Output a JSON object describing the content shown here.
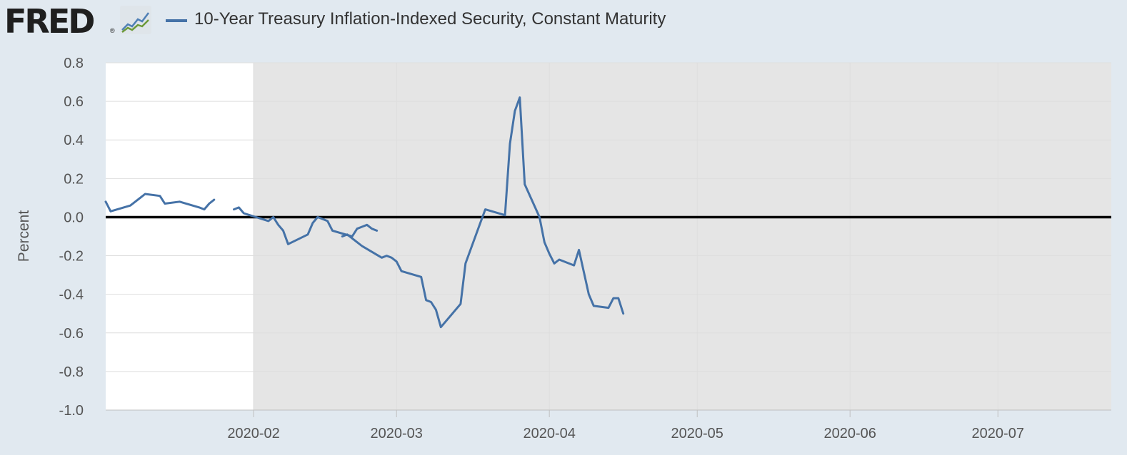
{
  "header": {
    "logo_text": "FRED",
    "reg_mark": "®",
    "series_title": "10-Year Treasury Inflation-Indexed Security, Constant Maturity"
  },
  "colors": {
    "background": "#e1e9f0",
    "plot_background": "#ffffff",
    "recession_shade": "#e5e5e5",
    "series_line": "#4572a7",
    "zero_line": "#000000",
    "gridline": "#dedede"
  },
  "icons": {
    "logo": "fred-logo",
    "graph": "graph-icon"
  },
  "chart_data": {
    "type": "line",
    "title": "",
    "xlabel": "",
    "ylabel": "Percent",
    "ylim": [
      -1.0,
      0.8
    ],
    "xlim": [
      "2020-01-02",
      "2020-07-24"
    ],
    "y_ticks": [
      "0.8",
      "0.6",
      "0.4",
      "0.2",
      "0.0",
      "-0.2",
      "-0.4",
      "-0.6",
      "-0.8",
      "-1.0"
    ],
    "y_tick_values": [
      0.8,
      0.6,
      0.4,
      0.2,
      0.0,
      -0.2,
      -0.4,
      -0.6,
      -0.8,
      -1.0
    ],
    "x_ticks": [
      "2020-02",
      "2020-03",
      "2020-04",
      "2020-05",
      "2020-06",
      "2020-07"
    ],
    "x_tick_dates": [
      "2020-02-01",
      "2020-03-01",
      "2020-04-01",
      "2020-05-01",
      "2020-06-01",
      "2020-07-01"
    ],
    "grid": true,
    "recession_shading": {
      "start": "2020-02-01",
      "end": "2020-07-24"
    },
    "reference_line": {
      "y": 0.0
    },
    "series": [
      {
        "name": "10-Year Treasury Inflation-Indexed Security, Constant Maturity",
        "segments": [
          [
            [
              "2020-01-02",
              0.08
            ],
            [
              "2020-01-03",
              0.03
            ],
            [
              "2020-01-07",
              0.06
            ],
            [
              "2020-01-09",
              0.1
            ],
            [
              "2020-01-10",
              0.12
            ],
            [
              "2020-01-13",
              0.11
            ],
            [
              "2020-01-14",
              0.07
            ],
            [
              "2020-01-17",
              0.08
            ],
            [
              "2020-01-21",
              0.05
            ],
            [
              "2020-01-22",
              0.04
            ],
            [
              "2020-01-23",
              0.07
            ],
            [
              "2020-01-24",
              0.09
            ]
          ],
          [
            [
              "2020-01-28",
              0.04
            ],
            [
              "2020-01-29",
              0.05
            ],
            [
              "2020-01-30",
              0.02
            ],
            [
              "2020-02-04",
              -0.02
            ],
            [
              "2020-02-05",
              0.0
            ],
            [
              "2020-02-06",
              -0.04
            ],
            [
              "2020-02-07",
              -0.07
            ],
            [
              "2020-02-08",
              -0.14
            ],
            [
              "2020-02-12",
              -0.09
            ],
            [
              "2020-02-13",
              -0.03
            ],
            [
              "2020-02-14",
              0.0
            ],
            [
              "2020-02-16",
              -0.02
            ],
            [
              "2020-02-17",
              -0.07
            ],
            [
              "2020-02-21",
              -0.1
            ],
            [
              "2020-02-22",
              -0.06
            ],
            [
              "2020-02-24",
              -0.04
            ],
            [
              "2020-02-25",
              -0.06
            ],
            [
              "2020-02-26",
              -0.07
            ]
          ],
          [
            [
              "2020-02-19",
              -0.1
            ],
            [
              "2020-02-20",
              -0.09
            ],
            [
              "2020-02-21",
              -0.11
            ],
            [
              "2020-02-23",
              -0.15
            ],
            [
              "2020-02-27",
              -0.21
            ],
            [
              "2020-02-28",
              -0.2
            ],
            [
              "2020-02-29",
              -0.21
            ],
            [
              "2020-03-01",
              -0.23
            ],
            [
              "2020-03-02",
              -0.28
            ],
            [
              "2020-03-06",
              -0.31
            ],
            [
              "2020-03-07",
              -0.43
            ],
            [
              "2020-03-08",
              -0.44
            ],
            [
              "2020-03-09",
              -0.48
            ],
            [
              "2020-03-10",
              -0.57
            ],
            [
              "2020-03-14",
              -0.45
            ],
            [
              "2020-03-15",
              -0.24
            ],
            [
              "2020-03-18",
              -0.03
            ],
            [
              "2020-03-19",
              0.04
            ],
            [
              "2020-03-23",
              0.01
            ],
            [
              "2020-03-24",
              0.38
            ],
            [
              "2020-03-25",
              0.55
            ],
            [
              "2020-03-26",
              0.62
            ],
            [
              "2020-03-27",
              0.17
            ],
            [
              "2020-03-30",
              0.0
            ],
            [
              "2020-03-31",
              -0.13
            ],
            [
              "2020-04-01",
              -0.19
            ],
            [
              "2020-04-02",
              -0.24
            ],
            [
              "2020-04-03",
              -0.22
            ],
            [
              "2020-04-06",
              -0.25
            ],
            [
              "2020-04-07",
              -0.17
            ],
            [
              "2020-04-09",
              -0.4
            ],
            [
              "2020-04-10",
              -0.46
            ],
            [
              "2020-04-13",
              -0.47
            ],
            [
              "2020-04-14",
              -0.42
            ],
            [
              "2020-04-15",
              -0.42
            ],
            [
              "2020-04-16",
              -0.5
            ]
          ]
        ]
      }
    ]
  }
}
